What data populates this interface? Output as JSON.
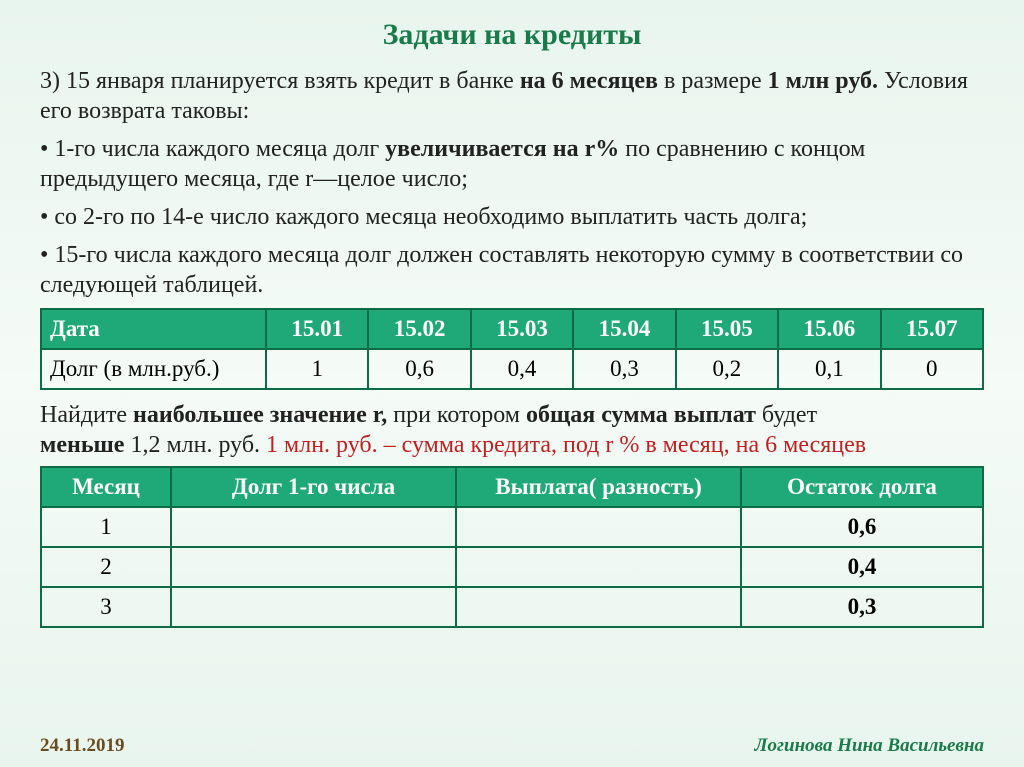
{
  "title": "Задачи на кредиты",
  "p1_a": "3) 15 января планируется взять кредит в банке ",
  "p1_b": "на 6 месяцев",
  "p1_c": " в размере ",
  "p1_d": "1 млн руб.",
  "p1_e": " Условия его возврата таковы:",
  "p2_a": " • 1-го числа каждого месяца долг ",
  "p2_b": "увеличивается на r%",
  "p2_c": " по сравнению с концом предыдущего месяца, где r—целое число;",
  "p3": " • со 2-го по 14-е число каждого месяца необходимо выплатить часть долга;",
  "p4": " • 15-го числа каждого месяца долг должен составлять некоторую сумму в соответствии со следующей таблицей.",
  "t1": {
    "r1": [
      "Дата",
      "15.01",
      "15.02",
      "15.03",
      "15.04",
      "15.05",
      "15.06",
      "15.07"
    ],
    "r2": [
      "Долг (в млн.руб.)",
      "1",
      "0,6",
      "0,4",
      "0,3",
      "0,2",
      "0,1",
      "0"
    ]
  },
  "p5_a": "Найдите ",
  "p5_b": "наибольшее значение r,",
  "p5_c": " при котором ",
  "p5_d": "общая сумма выплат",
  "p5_e": " будет ",
  "p5_f": "меньше",
  "p5_g": " 1,2 млн. руб. ",
  "p5_red": "1 млн. руб. – сумма кредита, под r % в месяц, на 6 месяцев",
  "t2": {
    "head": [
      "Месяц",
      "Долг 1-го числа",
      "Выплата( разность)",
      "Остаток долга"
    ],
    "rows": [
      [
        "1",
        "",
        "",
        "0,6"
      ],
      [
        "2",
        "",
        "",
        "0,4"
      ],
      [
        "3",
        "",
        "",
        "0,3"
      ]
    ]
  },
  "footer_date": "24.11.2019",
  "footer_author": "Логинова Нина Васильевна"
}
